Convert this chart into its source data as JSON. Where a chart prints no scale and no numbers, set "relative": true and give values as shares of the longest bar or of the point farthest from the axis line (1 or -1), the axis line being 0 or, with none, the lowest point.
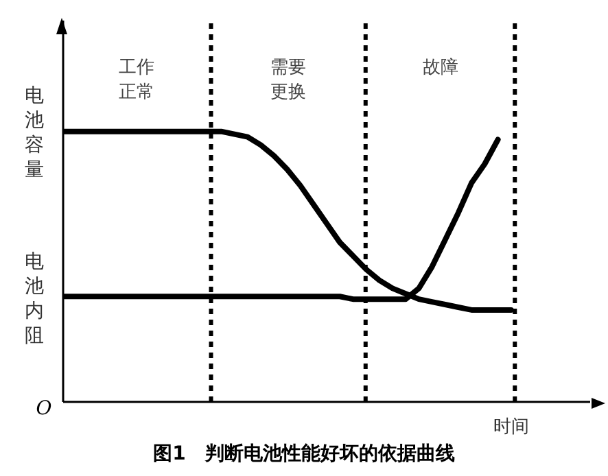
{
  "chart_data": {
    "type": "line",
    "title": "图1　判断电池性能好坏的依据曲线",
    "xlabel": "时间",
    "relative": true,
    "marker": "none",
    "line_style": "solid",
    "categories": [
      null,
      null,
      null,
      null,
      null,
      null,
      null,
      null,
      null,
      null,
      null,
      null,
      null,
      null,
      null,
      null,
      null,
      null,
      null,
      null,
      null,
      null,
      null,
      null,
      null,
      null,
      null,
      null,
      null,
      null,
      null,
      null,
      null,
      null,
      null
    ],
    "series": [
      {
        "name": "电池容量",
        "color": "#000000",
        "values": [
          1,
          1,
          1,
          1,
          1,
          1,
          1,
          1,
          1,
          1,
          1,
          1,
          1,
          0.99,
          0.98,
          0.95,
          0.91,
          0.86,
          0.8,
          0.73,
          0.66,
          0.59,
          0.54,
          0.49,
          0.45,
          0.42,
          0.4,
          0.38,
          0.37,
          0.36,
          0.35,
          0.34,
          0.34,
          0.34,
          0.34
        ]
      },
      {
        "name": "电池内阻",
        "color": "#000000",
        "values": [
          0.39,
          0.39,
          0.39,
          0.39,
          0.39,
          0.39,
          0.39,
          0.39,
          0.39,
          0.39,
          0.39,
          0.39,
          0.39,
          0.39,
          0.39,
          0.39,
          0.39,
          0.39,
          0.39,
          0.39,
          0.39,
          0.39,
          0.38,
          0.38,
          0.38,
          0.38,
          0.38,
          0.42,
          0.5,
          0.6,
          0.7,
          0.81,
          0.88,
          0.97,
          null
        ]
      }
    ],
    "annotations": [
      "工作正常",
      "需要更换",
      "故障",
      "O"
    ]
  }
}
